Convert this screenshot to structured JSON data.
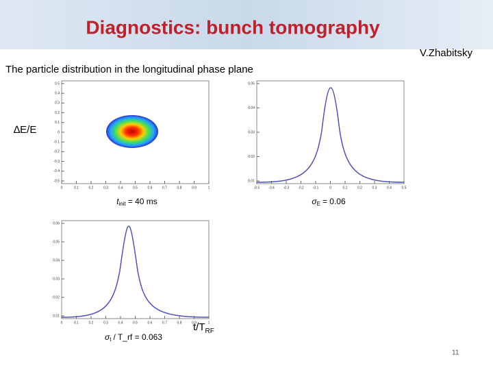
{
  "header": {
    "title": "Diagnostics: bunch tomography",
    "author": "V.Zhabitsky"
  },
  "subtitle": "The particle distribution in the longitudinal phase plane",
  "labels": {
    "y_axis": "∆E/E",
    "x_axis_main": "t/T",
    "x_axis_sub": "RF"
  },
  "plots": [
    {
      "yticks": [
        "0.5",
        "0.4",
        "0.3",
        "0.2",
        "0.1",
        "0",
        "-0.1",
        "-0.2",
        "-0.3",
        "-0.4",
        "-0.5"
      ],
      "xticks": [
        "0",
        "0.1",
        "0.2",
        "0.3",
        "0.4",
        "0.5",
        "0.6",
        "0.7",
        "0.8",
        "0.9",
        "1"
      ],
      "caption": {
        "main": "t",
        "sub": "init",
        "rest": "= 40 ms"
      }
    },
    {
      "yticks": [
        "0.05",
        "0.04",
        "0.03",
        "0.02",
        "0.01"
      ],
      "xticks": [
        "-0.5",
        "-0.4",
        "-0.3",
        "-0.2",
        "-0.1",
        "0",
        "0.1",
        "0.2",
        "0.3",
        "0.4",
        "0.5"
      ],
      "caption": {
        "main": "σ",
        "sub": "E",
        "rest": "= 0.06"
      }
    },
    {
      "yticks": [
        "0.06",
        "0.05",
        "0.04",
        "0.03",
        "0.02",
        "0.01"
      ],
      "xticks": [
        "0",
        "0.1",
        "0.2",
        "0.3",
        "0.4",
        "0.5",
        "0.6",
        "0.7",
        "0.8",
        "0.9",
        "1"
      ],
      "caption": {
        "main": "σ",
        "sub": "t",
        "rest": "/ T_rf = 0.063"
      }
    }
  ],
  "page_number": "11"
}
